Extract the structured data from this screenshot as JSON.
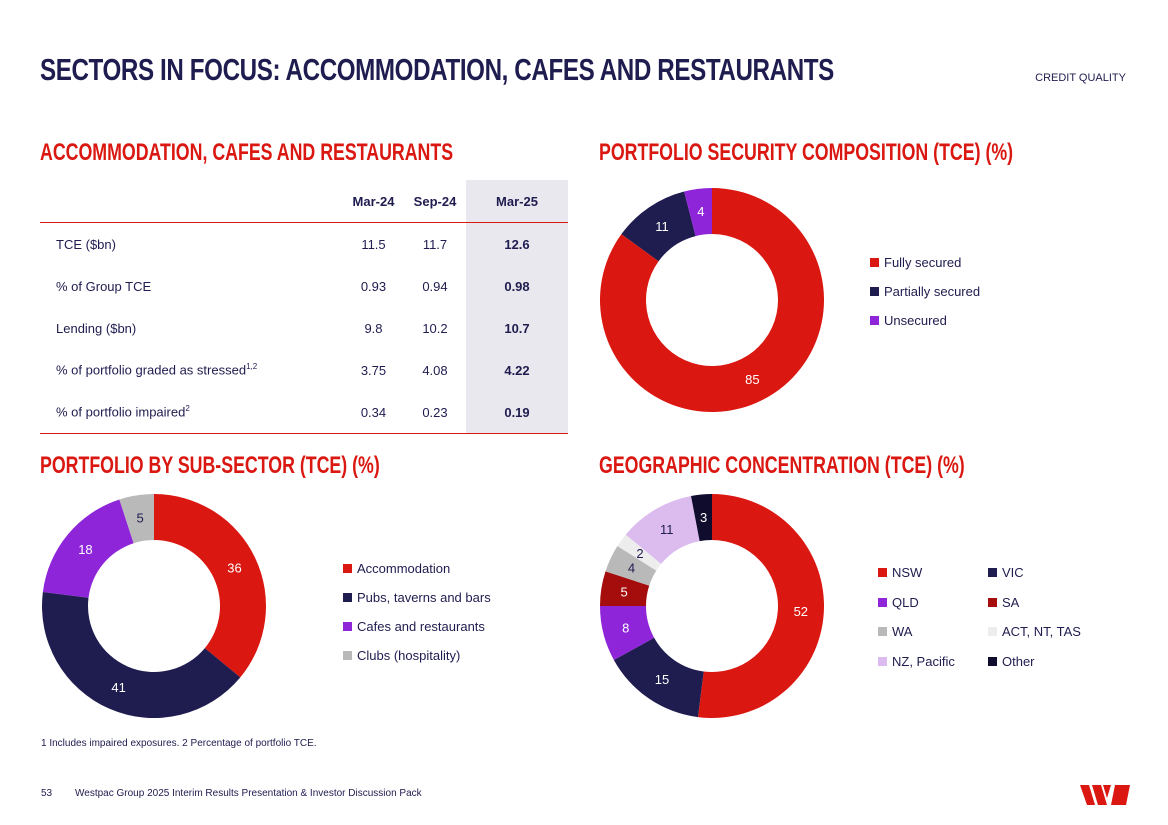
{
  "header": {
    "title": "SECTORS IN FOCUS: ACCOMMODATION, CAFES AND RESTAURANTS",
    "tag": "CREDIT QUALITY"
  },
  "table_section": {
    "title": "ACCOMMODATION, CAFES AND RESTAURANTS",
    "columns": [
      "Mar-24",
      "Sep-24",
      "Mar-25"
    ],
    "rows": [
      {
        "label": "TCE ($bn)",
        "sup": "",
        "values": [
          "11.5",
          "11.7",
          "12.6"
        ]
      },
      {
        "label": "% of Group TCE",
        "sup": "",
        "values": [
          "0.93",
          "0.94",
          "0.98"
        ]
      },
      {
        "label": "Lending ($bn)",
        "sup": "",
        "values": [
          "9.8",
          "10.2",
          "10.7"
        ]
      },
      {
        "label": "% of portfolio graded as stressed",
        "sup": "1,2",
        "values": [
          "3.75",
          "4.08",
          "4.22"
        ]
      },
      {
        "label": "% of portfolio impaired",
        "sup": "2",
        "values": [
          "0.34",
          "0.23",
          "0.19"
        ]
      }
    ]
  },
  "chart_data": [
    {
      "id": "security",
      "type": "pie",
      "title": "PORTFOLIO SECURITY COMPOSITION (TCE) (%)",
      "categories": [
        "Fully secured",
        "Partially secured",
        "Unsecured"
      ],
      "values": [
        85,
        11,
        4
      ],
      "colors": [
        "#da1710",
        "#1f1c4f",
        "#8f25d9"
      ],
      "label_colors": [
        "#ffffff",
        "#ffffff",
        "#ffffff"
      ]
    },
    {
      "id": "subsector",
      "type": "pie",
      "title": "PORTFOLIO BY SUB-SECTOR (TCE) (%)",
      "categories": [
        "Accommodation",
        "Pubs, taverns and bars",
        "Cafes and restaurants",
        "Clubs (hospitality)"
      ],
      "values": [
        36,
        41,
        18,
        5
      ],
      "colors": [
        "#da1710",
        "#1f1c4f",
        "#8f25d9",
        "#b9b9b9"
      ],
      "label_colors": [
        "#ffffff",
        "#ffffff",
        "#ffffff",
        "#1f1c4f"
      ]
    },
    {
      "id": "geo",
      "type": "pie",
      "title": "GEOGRAPHIC CONCENTRATION (TCE) (%)",
      "categories": [
        "NSW",
        "VIC",
        "QLD",
        "SA",
        "WA",
        "ACT, NT, TAS",
        "NZ, Pacific",
        "Other"
      ],
      "values": [
        52,
        15,
        8,
        5,
        4,
        2,
        11,
        3
      ],
      "colors": [
        "#da1710",
        "#1f1c4f",
        "#8f25d9",
        "#a50d0d",
        "#b9b9b9",
        "#ededed",
        "#dcbcef",
        "#0f0c2e"
      ],
      "label_colors": [
        "#ffffff",
        "#ffffff",
        "#ffffff",
        "#ffffff",
        "#1f1c4f",
        "#1f1c4f",
        "#1f1c4f",
        "#ffffff"
      ]
    }
  ],
  "footer": {
    "note": "1 Includes impaired exposures. 2 Percentage of portfolio TCE.",
    "page_number": "53",
    "doc_title": "Westpac Group 2025 Interim Results Presentation & Investor Discussion Pack"
  }
}
